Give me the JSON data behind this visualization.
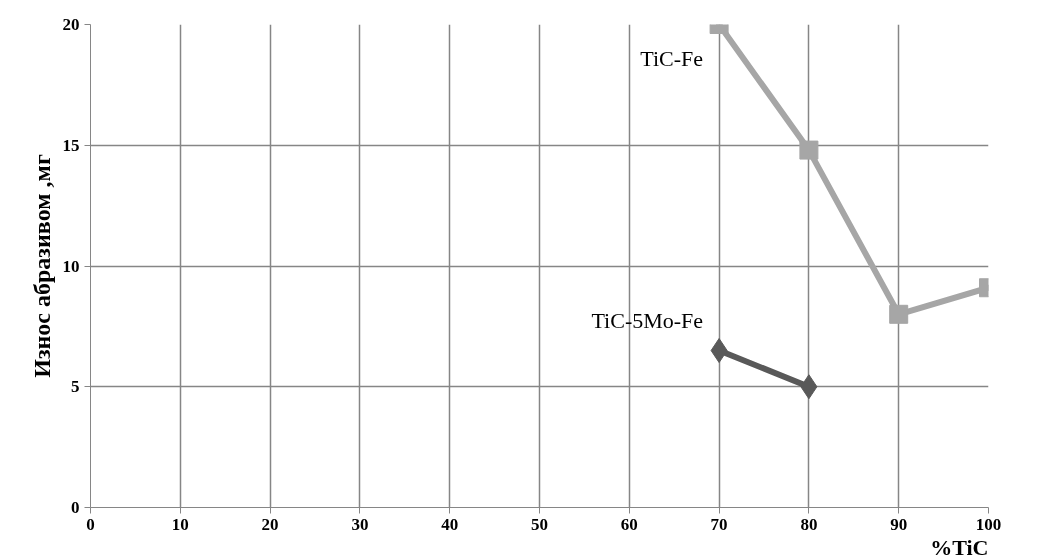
{
  "chart_data": {
    "type": "line",
    "xlabel": "%TiC",
    "ylabel": "Износ абразивом ,мг",
    "x": [
      70,
      80,
      90,
      100
    ],
    "series": [
      {
        "name": "TiC-Fe",
        "color": "#a6a6a6",
        "marker": "square",
        "values": [
          20,
          14.8,
          8,
          9.1
        ]
      },
      {
        "name": "TiC-5Mo-Fe",
        "color": "#595959",
        "marker": "diamond",
        "values": [
          6.5,
          5,
          null,
          null
        ]
      }
    ],
    "xlim": [
      0,
      100
    ],
    "ylim": [
      0,
      20
    ],
    "xticks": [
      0,
      10,
      20,
      30,
      40,
      50,
      60,
      70,
      80,
      90,
      100
    ],
    "yticks": [
      0,
      5,
      10,
      15,
      20
    ],
    "grid": true,
    "line_style": "solid"
  }
}
